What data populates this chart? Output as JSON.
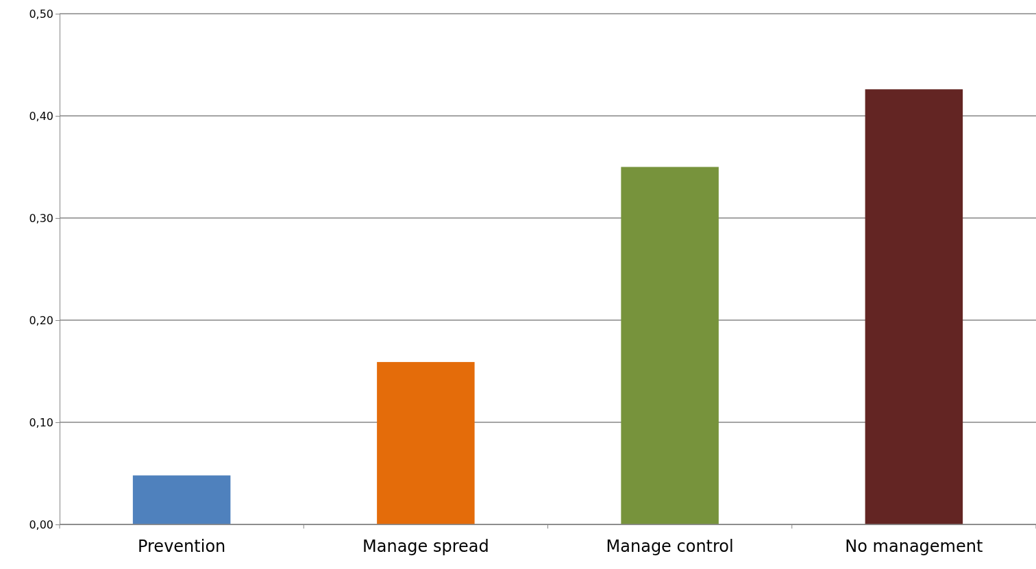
{
  "chart_data": {
    "type": "bar",
    "categories": [
      "Prevention",
      "Manage spread",
      "Manage control",
      "No management"
    ],
    "values": [
      0.048,
      0.159,
      0.35,
      0.426
    ],
    "colors": [
      "#4f81bd",
      "#e46c0a",
      "#77933c",
      "#632523"
    ],
    "ylim": [
      0,
      0.5
    ],
    "yticks": [
      {
        "value": 0,
        "label": "0,00"
      },
      {
        "value": 0.1,
        "label": "0,10"
      },
      {
        "value": 0.2,
        "label": "0,20"
      },
      {
        "value": 0.3,
        "label": "0,30"
      },
      {
        "value": 0.4,
        "label": "0,40"
      },
      {
        "value": 0.5,
        "label": "0,50"
      }
    ],
    "grid": "y",
    "legend": false
  }
}
